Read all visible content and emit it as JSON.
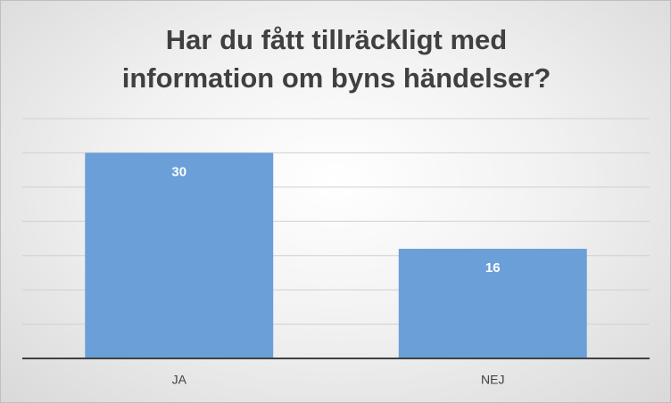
{
  "chart_data": {
    "type": "bar",
    "title": "Har du fått tillräckligt med information om byns händelser?",
    "categories": [
      "JA",
      "NEJ"
    ],
    "values": [
      30,
      16
    ],
    "color": "#6a9fd8",
    "ylim": [
      0,
      35
    ],
    "yticks": [
      0,
      5,
      10,
      15,
      20,
      25,
      30,
      35
    ],
    "grid": true
  }
}
